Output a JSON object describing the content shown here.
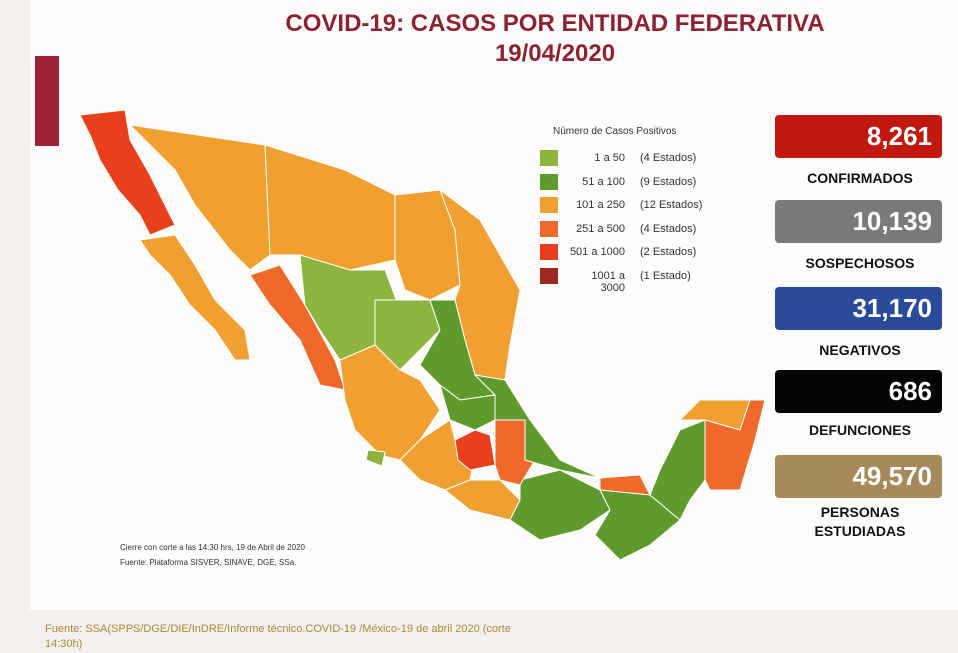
{
  "title": "COVID-19: CASOS POR ENTIDAD FEDERATIVA",
  "date": "19/04/2020",
  "legend": {
    "title": "Número de Casos Positivos",
    "items": [
      {
        "range": "1 a 50",
        "count": "(4 Estados)",
        "color": "#8db43f"
      },
      {
        "range": "51 a 100",
        "count": "(9 Estados)",
        "color": "#5e9a2c"
      },
      {
        "range": "101 a 250",
        "count": "(12 Estados)",
        "color": "#f0a030"
      },
      {
        "range": "251 a 500",
        "count": "(4 Estados)",
        "color": "#ef6a2a"
      },
      {
        "range": "501 a 1000",
        "count": "(2 Estados)",
        "color": "#e8401c"
      },
      {
        "range": "1001 a 3000",
        "count": "(1 Estado)",
        "color": "#9b2a22"
      }
    ]
  },
  "stats": [
    {
      "value": "8,261",
      "label": "CONFIRMADOS",
      "color": "#c0180f"
    },
    {
      "value": "10,139",
      "label": "SOSPECHOSOS",
      "color": "#7a7a7a"
    },
    {
      "value": "31,170",
      "label": "NEGATIVOS",
      "color": "#2a4a9a"
    },
    {
      "value": "686",
      "label": "DEFUNCIONES",
      "color": "#050505"
    },
    {
      "value": "49,570",
      "label": "PERSONAS ESTUDIADAS",
      "color": "#a68a5a"
    }
  ],
  "notes": [
    "Cierre con corte a las 14:30 hrs, 19 de Abril de 2020",
    "Fuente: Plataforma SISVER, SINAVE, DGE, SSa."
  ],
  "source": "Fuente: SSA(SPPS/DGE/DIE/InDRE/Informe técnico.COVID-19 /México-19 de abril 2020 (corte 14:30h)"
}
